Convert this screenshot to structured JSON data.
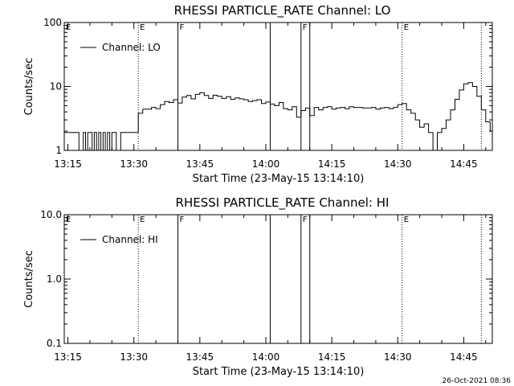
{
  "chart_data": [
    {
      "type": "line",
      "title": "RHESSI PARTICLE_RATE Channel: LO",
      "xlabel": "Start Time (23-May-15 13:14:10)",
      "ylabel": "Counts/sec",
      "yscale": "log",
      "ylim": [
        1,
        100
      ],
      "xlim": [
        "13:14:10",
        "14:51:30"
      ],
      "xticks": [
        "13:15",
        "13:30",
        "13:45",
        "14:00",
        "14:15",
        "14:30",
        "14:45"
      ],
      "yticks": [
        "1",
        "10",
        "100"
      ],
      "legend": {
        "label": "Channel: LO",
        "position": "top-left"
      },
      "series": [
        {
          "name": "Channel: LO",
          "x": [
            "13:14:10",
            "13:17:00",
            "13:17:30",
            "13:18:30",
            "13:19:00",
            "13:19:30",
            "13:20:00",
            "13:20:30",
            "13:21:00",
            "13:21:30",
            "13:22:00",
            "13:22:30",
            "13:23:00",
            "13:23:30",
            "13:24:00",
            "13:24:30",
            "13:25:00",
            "13:25:30",
            "13:26:00",
            "13:27:00",
            "13:28:00",
            "13:29:00",
            "13:30:30",
            "13:31:00",
            "13:32:00",
            "13:33:00",
            "13:34:00",
            "13:35:00",
            "13:36:00",
            "13:37:00",
            "13:38:00",
            "13:39:00",
            "13:40:00",
            "13:41:00",
            "13:42:00",
            "13:43:00",
            "13:44:00",
            "13:45:00",
            "13:46:00",
            "13:47:00",
            "13:48:00",
            "13:49:00",
            "13:50:00",
            "13:51:00",
            "13:52:00",
            "13:53:00",
            "13:54:00",
            "13:55:00",
            "13:56:00",
            "13:57:00",
            "13:58:00",
            "13:59:00",
            "14:00:00",
            "14:01:00",
            "14:02:00",
            "14:03:00",
            "14:04:00",
            "14:05:00",
            "14:06:00",
            "14:07:00",
            "14:08:00",
            "14:09:00",
            "14:10:00",
            "14:11:00",
            "14:12:00",
            "14:13:00",
            "14:14:00",
            "14:15:00",
            "14:16:00",
            "14:17:00",
            "14:18:00",
            "14:19:00",
            "14:20:00",
            "14:21:00",
            "14:22:00",
            "14:23:00",
            "14:24:00",
            "14:25:00",
            "14:26:00",
            "14:27:00",
            "14:28:00",
            "14:29:00",
            "14:30:00",
            "14:31:00",
            "14:32:00",
            "14:33:00",
            "14:34:00",
            "14:35:00",
            "14:36:00",
            "14:37:00",
            "14:38:00",
            "14:39:00",
            "14:40:00",
            "14:41:00",
            "14:42:00",
            "14:43:00",
            "14:44:00",
            "14:45:00",
            "14:46:00",
            "14:47:00",
            "14:48:00",
            "14:49:00",
            "14:50:00",
            "14:51:00"
          ],
          "values": [
            1.9,
            1.9,
            1,
            1.9,
            1,
            1.9,
            1.9,
            1,
            1.9,
            1,
            1.9,
            1,
            1.9,
            1,
            1.9,
            1,
            1.9,
            1.9,
            1,
            1.9,
            1.9,
            1.9,
            1.9,
            3.8,
            4.4,
            4.4,
            4.7,
            4.5,
            5.2,
            5.8,
            5.6,
            6.2,
            5.5,
            6.8,
            7.2,
            6.4,
            7.5,
            8.0,
            7.2,
            6.5,
            7.3,
            7.0,
            6.5,
            6.9,
            6.3,
            6.6,
            6.4,
            6.2,
            5.8,
            6.0,
            6.2,
            5.4,
            5.7,
            5.3,
            5.0,
            5.6,
            4.5,
            4.3,
            4.8,
            3.3,
            4.2,
            4.6,
            3.5,
            4.7,
            4.3,
            4.7,
            4.8,
            4.4,
            4.6,
            4.7,
            4.5,
            4.8,
            4.7,
            4.7,
            4.6,
            4.6,
            4.7,
            4.4,
            4.6,
            4.7,
            4.5,
            4.7,
            5.2,
            5.4,
            4.3,
            3.8,
            3.0,
            2.3,
            2.6,
            1.9,
            1.0,
            1.9,
            2.2,
            3.0,
            4.3,
            6.3,
            8.8,
            11.0,
            11.5,
            10.0,
            7.0,
            4.3,
            2.8,
            2.0
          ]
        }
      ],
      "markers": [
        "E",
        "F",
        "F",
        "E"
      ]
    },
    {
      "type": "line",
      "title": "RHESSI PARTICLE_RATE Channel: HI",
      "xlabel": "Start Time (23-May-15 13:14:10)",
      "ylabel": "Counts/sec",
      "yscale": "log",
      "ylim": [
        0.1,
        10.0
      ],
      "xlim": [
        "13:14:10",
        "14:51:30"
      ],
      "xticks": [
        "13:15",
        "13:30",
        "13:45",
        "14:00",
        "14:15",
        "14:30",
        "14:45"
      ],
      "yticks": [
        "0.1",
        "1.0",
        "10.0"
      ],
      "legend": {
        "label": "Channel: HI",
        "position": "top-left"
      },
      "series": [
        {
          "name": "Channel: HI",
          "x": [],
          "values": []
        }
      ],
      "markers": [
        "E",
        "F",
        "F",
        "E"
      ]
    }
  ],
  "footer_timestamp": "26-Oct-2021 08:36"
}
